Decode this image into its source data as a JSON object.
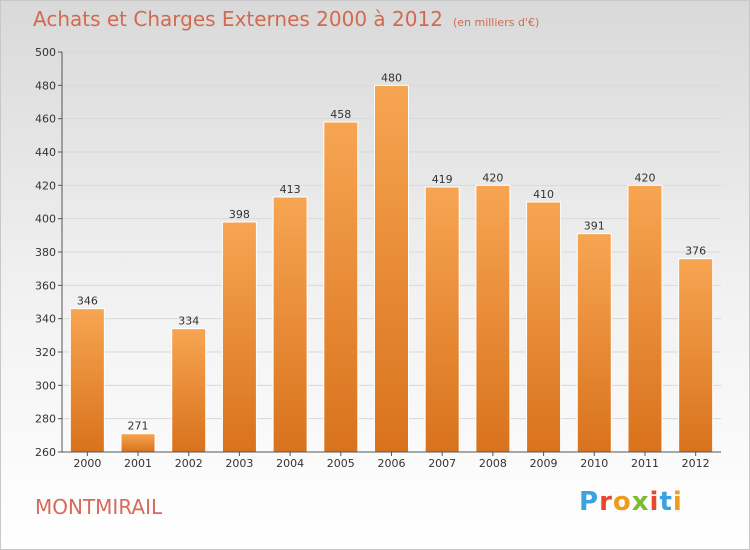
{
  "header": {
    "title": "Achats et Charges Externes 2000 à 2012",
    "subtitle": "(en milliers d'€)"
  },
  "footer": {
    "commune": "MONTMIRAIL",
    "logo_text": "Proxiti",
    "logo_colors": [
      "#3aa3df",
      "#e8462f",
      "#f29a1a",
      "#7cba2f",
      "#e8462f",
      "#3aa3df",
      "#f29a1a"
    ]
  },
  "colors": {
    "bar_top": "#f7a552",
    "bar_bottom": "#d9721c",
    "grid": "#d9d9d9",
    "axis_text": "#333333"
  },
  "chart_data": {
    "type": "bar",
    "title": "Achats et Charges Externes 2000 à 2012",
    "subtitle": "(en milliers d'€)",
    "categories": [
      "2000",
      "2001",
      "2002",
      "2003",
      "2004",
      "2005",
      "2006",
      "2007",
      "2008",
      "2009",
      "2010",
      "2011",
      "2012"
    ],
    "values": [
      346,
      271,
      334,
      398,
      413,
      458,
      480,
      419,
      420,
      410,
      391,
      420,
      376
    ],
    "ylim": [
      260,
      500
    ],
    "yticks": [
      260,
      280,
      300,
      320,
      340,
      360,
      380,
      400,
      420,
      440,
      460,
      480,
      500
    ],
    "grid": true,
    "data_labels": true
  }
}
